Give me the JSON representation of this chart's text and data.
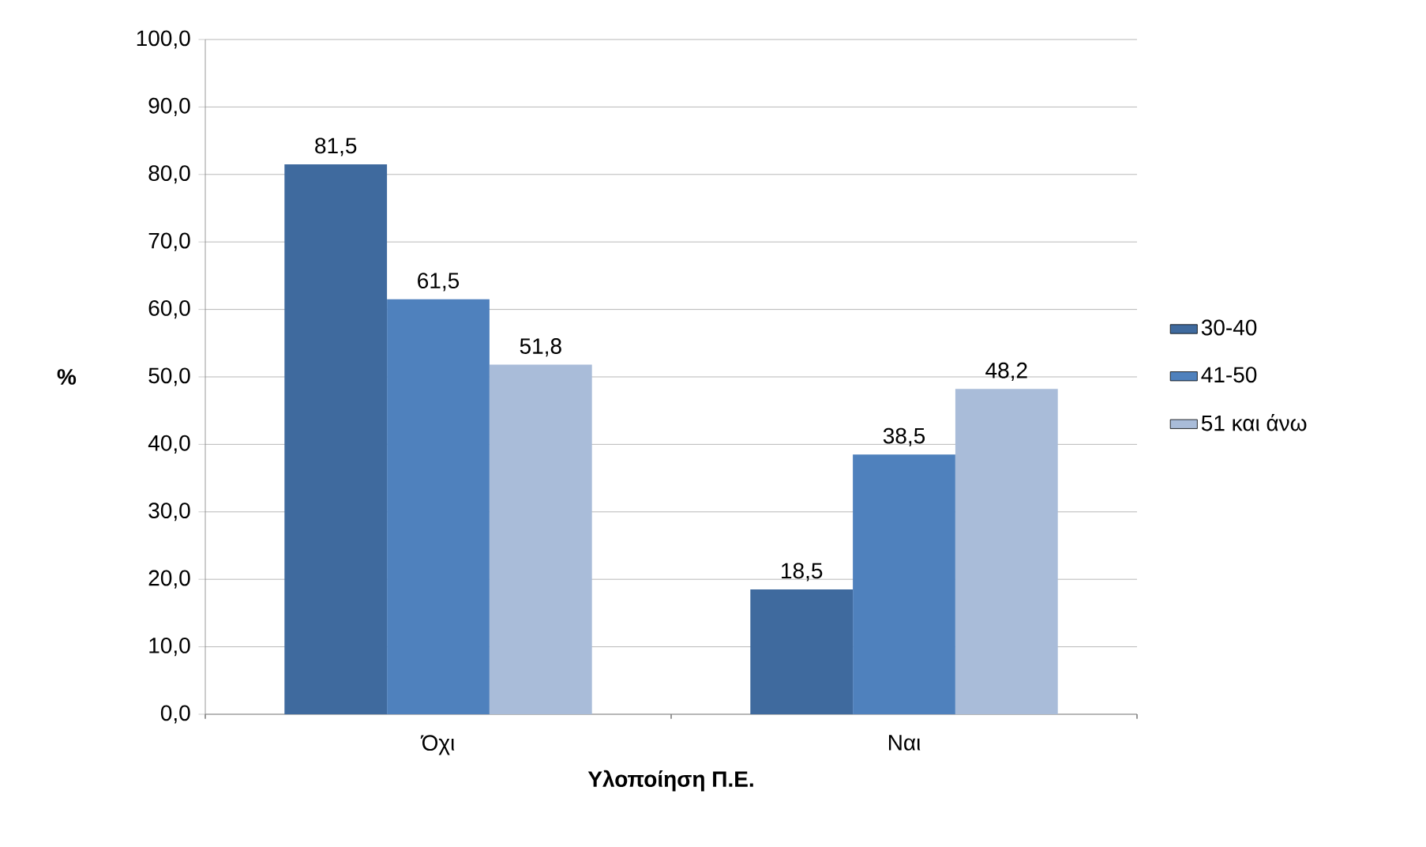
{
  "chart_data": {
    "type": "bar",
    "xlabel": "Υλοποίηση Π.Ε.",
    "ylabel": "%",
    "categories": [
      "Όχι",
      "Ναι"
    ],
    "series": [
      {
        "name": "30-40",
        "color": "#3f6a9e",
        "values": [
          81.5,
          18.5
        ],
        "value_labels": [
          "81,5",
          "18,5"
        ]
      },
      {
        "name": "41-50",
        "color": "#4f81bd",
        "values": [
          61.5,
          38.5
        ],
        "value_labels": [
          "61,5",
          "38,5"
        ]
      },
      {
        "name": "51 και άνω",
        "color": "#a9bcd9",
        "values": [
          51.8,
          48.2
        ],
        "value_labels": [
          "51,8",
          "48,2"
        ]
      }
    ],
    "ylim": [
      0,
      100
    ],
    "yticks": [
      {
        "value": 0,
        "label": "0,0"
      },
      {
        "value": 10,
        "label": "10,0"
      },
      {
        "value": 20,
        "label": "20,0"
      },
      {
        "value": 30,
        "label": "30,0"
      },
      {
        "value": 40,
        "label": "40,0"
      },
      {
        "value": 50,
        "label": "50,0"
      },
      {
        "value": 60,
        "label": "60,0"
      },
      {
        "value": 70,
        "label": "70,0"
      },
      {
        "value": 80,
        "label": "80,0"
      },
      {
        "value": 90,
        "label": "90,0"
      },
      {
        "value": 100,
        "label": "100,0"
      }
    ],
    "grid": "y",
    "legend": "right"
  }
}
